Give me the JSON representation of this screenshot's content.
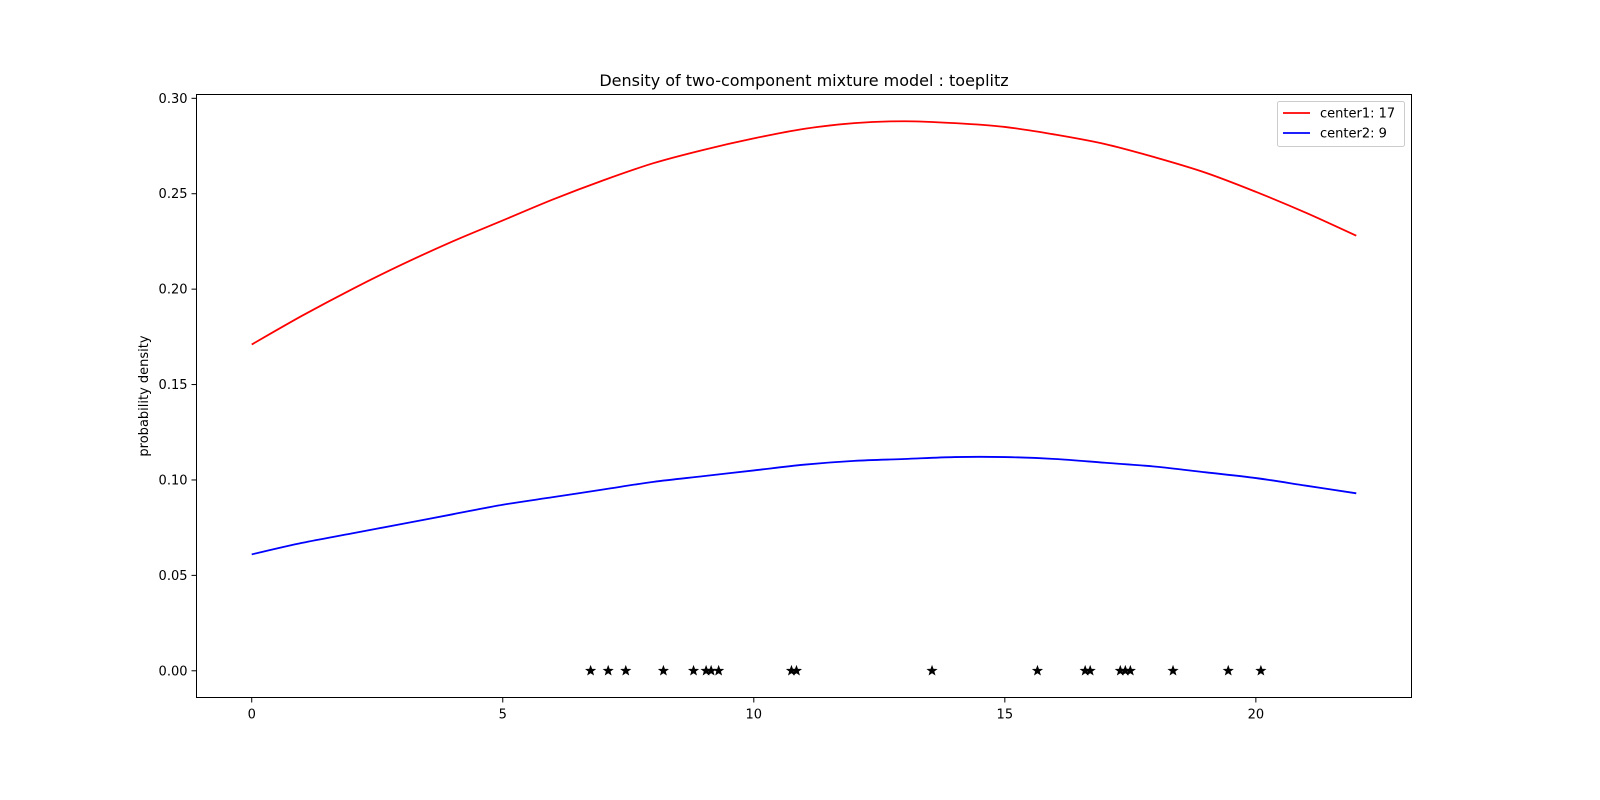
{
  "chart_data": {
    "type": "line",
    "title": "Density of two-component mixture model : toeplitz",
    "xlabel": "",
    "ylabel": "probability density",
    "xlim": [
      -1.1,
      23.1
    ],
    "ylim": [
      -0.014,
      0.302
    ],
    "x_ticks": [
      0,
      5,
      10,
      15,
      20
    ],
    "y_ticks": [
      0.0,
      0.05,
      0.1,
      0.15,
      0.2,
      0.25,
      0.3
    ],
    "x_tick_labels": [
      "0",
      "5",
      "10",
      "15",
      "20"
    ],
    "y_tick_labels": [
      "0.00",
      "0.05",
      "0.10",
      "0.15",
      "0.20",
      "0.25",
      "0.30"
    ],
    "grid": false,
    "legend_position": "top-right",
    "series": [
      {
        "name": "center1: 17",
        "color": "#ff0000",
        "x": [
          0,
          1,
          2,
          3,
          4,
          5,
          6,
          7,
          8,
          9,
          10,
          11,
          12,
          13,
          14,
          15,
          16,
          17,
          18,
          19,
          20,
          21,
          22
        ],
        "y": [
          0.171,
          0.186,
          0.2,
          0.213,
          0.225,
          0.236,
          0.247,
          0.257,
          0.266,
          0.273,
          0.279,
          0.284,
          0.287,
          0.288,
          0.287,
          0.285,
          0.281,
          0.276,
          0.269,
          0.261,
          0.251,
          0.24,
          0.228
        ]
      },
      {
        "name": "center2: 9",
        "color": "#0000ff",
        "x": [
          0,
          1,
          2,
          3,
          4,
          5,
          6,
          7,
          8,
          9,
          10,
          11,
          12,
          13,
          14,
          15,
          16,
          17,
          18,
          19,
          20,
          21,
          22
        ],
        "y": [
          0.061,
          0.067,
          0.072,
          0.077,
          0.082,
          0.087,
          0.091,
          0.095,
          0.099,
          0.102,
          0.105,
          0.108,
          0.11,
          0.111,
          0.112,
          0.112,
          0.111,
          0.109,
          0.107,
          0.104,
          0.101,
          0.097,
          0.093
        ]
      },
      {
        "name": "",
        "color": "#000000",
        "marker": "star",
        "x": [
          6.75,
          7.1,
          7.45,
          8.2,
          8.8,
          9.05,
          9.15,
          9.3,
          10.75,
          10.85,
          13.55,
          15.65,
          16.6,
          16.7,
          17.3,
          17.4,
          17.5,
          18.35,
          19.45,
          20.1
        ],
        "y": [
          0,
          0,
          0,
          0,
          0,
          0,
          0,
          0,
          0,
          0,
          0,
          0,
          0,
          0,
          0,
          0,
          0,
          0,
          0,
          0
        ]
      }
    ]
  }
}
